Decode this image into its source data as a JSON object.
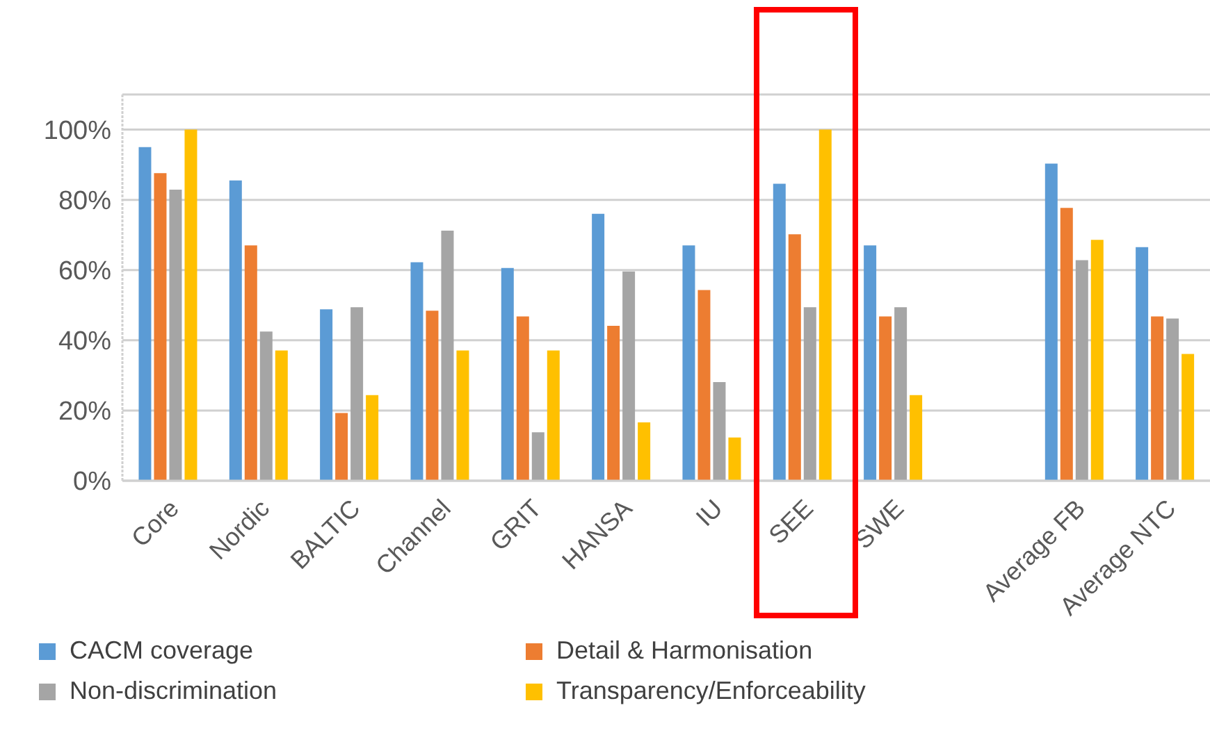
{
  "chart_data": {
    "type": "bar",
    "categories": [
      "Core",
      "Nordic",
      "BALTIC",
      "Channel",
      "GRIT",
      "HANSA",
      "IU",
      "SEE",
      "SWE",
      null,
      "Average FB",
      "Average NTC"
    ],
    "series": [
      {
        "name": "CACM coverage",
        "color": "#5b9bd5",
        "values": [
          95,
          85.5,
          48.8,
          62.2,
          60.6,
          76,
          67,
          84.6,
          67,
          null,
          90.3,
          66.5
        ]
      },
      {
        "name": "Detail & Harmonisation",
        "color": "#ed7d31",
        "values": [
          87.6,
          67,
          19.3,
          48.4,
          46.8,
          44.1,
          54.3,
          70.2,
          46.8,
          null,
          77.7,
          46.8
        ]
      },
      {
        "name": "Non-discrimination",
        "color": "#a5a5a5",
        "values": [
          82.9,
          42.5,
          49.4,
          71.2,
          13.8,
          59.6,
          28.1,
          49.4,
          49.4,
          null,
          62.8,
          46.2
        ]
      },
      {
        "name": "Transparency/Enforceability",
        "color": "#ffc000",
        "values": [
          100,
          37.1,
          24.4,
          37.1,
          37.1,
          16.6,
          12.3,
          100,
          24.4,
          null,
          68.6,
          36.1
        ]
      }
    ],
    "ylim": [
      0,
      110
    ],
    "yticks": [
      {
        "value": 0,
        "label": "0%"
      },
      {
        "value": 20,
        "label": "20%"
      },
      {
        "value": 40,
        "label": "40%"
      },
      {
        "value": 60,
        "label": "60%"
      },
      {
        "value": 80,
        "label": "80%"
      },
      {
        "value": 100,
        "label": "100%"
      }
    ],
    "grid": "y",
    "legend": "bottom"
  }
}
